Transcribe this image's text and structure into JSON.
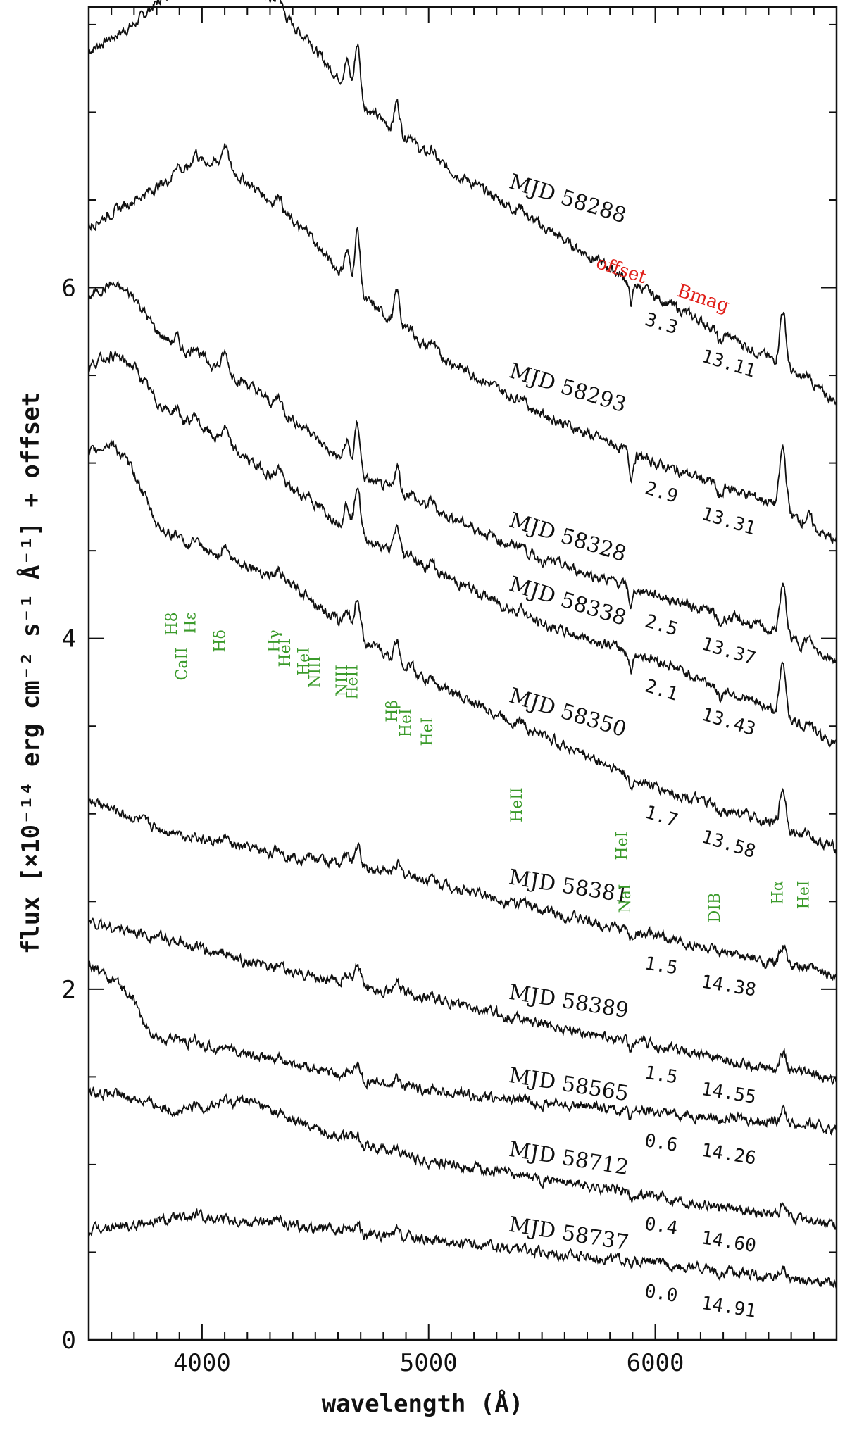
{
  "chart_data": {
    "type": "line",
    "xlabel": "wavelength (Å)",
    "ylabel": "flux [×10⁻¹⁴ erg cm⁻² s⁻¹ Å⁻¹] + offset",
    "xlim": [
      3500,
      6800
    ],
    "ylim": [
      0,
      7.6
    ],
    "x_ticks": [
      4000,
      5000,
      6000
    ],
    "y_ticks": [
      0,
      2,
      4,
      6
    ],
    "grid": false,
    "column_headers": {
      "offset": "offset",
      "bmag": "Bmag",
      "color": "#e0201a"
    },
    "line_color": "#3a9a2a",
    "series": [
      {
        "name": "MJD 58288",
        "offset": "3.3",
        "bmag": "13.11",
        "anchors": [
          [
            3500,
            7.35
          ],
          [
            3700,
            7.5
          ],
          [
            3900,
            7.75
          ],
          [
            4000,
            7.9
          ],
          [
            4100,
            7.95
          ],
          [
            4300,
            7.65
          ],
          [
            4500,
            7.35
          ],
          [
            4700,
            7.05
          ],
          [
            5000,
            6.75
          ],
          [
            5500,
            6.35
          ],
          [
            6000,
            5.95
          ],
          [
            6500,
            5.6
          ],
          [
            6800,
            5.35
          ]
        ]
      },
      {
        "name": "MJD 58293",
        "offset": "2.9",
        "bmag": "13.31",
        "anchors": [
          [
            3500,
            6.35
          ],
          [
            3700,
            6.5
          ],
          [
            3900,
            6.65
          ],
          [
            4000,
            6.72
          ],
          [
            4100,
            6.7
          ],
          [
            4300,
            6.5
          ],
          [
            4500,
            6.25
          ],
          [
            4700,
            5.95
          ],
          [
            5000,
            5.65
          ],
          [
            5500,
            5.28
          ],
          [
            6000,
            5.0
          ],
          [
            6500,
            4.78
          ],
          [
            6800,
            4.55
          ]
        ]
      },
      {
        "name": "MJD 58328",
        "offset": "2.5",
        "bmag": "13.37",
        "anchors": [
          [
            3500,
            5.95
          ],
          [
            3600,
            6.02
          ],
          [
            3700,
            5.95
          ],
          [
            3800,
            5.75
          ],
          [
            3900,
            5.65
          ],
          [
            4000,
            5.6
          ],
          [
            4200,
            5.45
          ],
          [
            4400,
            5.25
          ],
          [
            4700,
            4.92
          ],
          [
            5000,
            4.75
          ],
          [
            5500,
            4.45
          ],
          [
            6000,
            4.25
          ],
          [
            6500,
            4.05
          ],
          [
            6800,
            3.88
          ]
        ]
      },
      {
        "name": "MJD 58338",
        "offset": "2.1",
        "bmag": "13.43",
        "anchors": [
          [
            3500,
            5.55
          ],
          [
            3600,
            5.62
          ],
          [
            3700,
            5.55
          ],
          [
            3800,
            5.35
          ],
          [
            3900,
            5.25
          ],
          [
            4000,
            5.2
          ],
          [
            4200,
            5.02
          ],
          [
            4400,
            4.85
          ],
          [
            4700,
            4.58
          ],
          [
            5000,
            4.4
          ],
          [
            5500,
            4.08
          ],
          [
            6000,
            3.88
          ],
          [
            6500,
            3.6
          ],
          [
            6800,
            3.4
          ]
        ]
      },
      {
        "name": "MJD 58350",
        "offset": "1.7",
        "bmag": "13.58",
        "anchors": [
          [
            3500,
            5.05
          ],
          [
            3600,
            5.12
          ],
          [
            3700,
            4.95
          ],
          [
            3800,
            4.65
          ],
          [
            3900,
            4.55
          ],
          [
            4000,
            4.5
          ],
          [
            4200,
            4.42
          ],
          [
            4400,
            4.3
          ],
          [
            4700,
            4.0
          ],
          [
            5000,
            3.75
          ],
          [
            5500,
            3.45
          ],
          [
            6000,
            3.15
          ],
          [
            6500,
            2.95
          ],
          [
            6800,
            2.8
          ]
        ]
      },
      {
        "name": "MJD 58381",
        "offset": "1.5",
        "bmag": "14.38",
        "anchors": [
          [
            3500,
            3.08
          ],
          [
            3800,
            2.92
          ],
          [
            4000,
            2.85
          ],
          [
            4300,
            2.78
          ],
          [
            4700,
            2.7
          ],
          [
            5000,
            2.62
          ],
          [
            5500,
            2.45
          ],
          [
            6000,
            2.3
          ],
          [
            6500,
            2.15
          ],
          [
            6800,
            2.08
          ]
        ]
      },
      {
        "name": "MJD 58389",
        "offset": "1.5",
        "bmag": "14.55",
        "anchors": [
          [
            3500,
            2.38
          ],
          [
            3800,
            2.3
          ],
          [
            4000,
            2.22
          ],
          [
            4300,
            2.12
          ],
          [
            4700,
            2.02
          ],
          [
            5000,
            1.95
          ],
          [
            5500,
            1.8
          ],
          [
            6000,
            1.68
          ],
          [
            6500,
            1.55
          ],
          [
            6800,
            1.48
          ]
        ]
      },
      {
        "name": "MJD 58565",
        "offset": "0.6",
        "bmag": "14.26",
        "anchors": [
          [
            3500,
            2.15
          ],
          [
            3600,
            2.05
          ],
          [
            3700,
            1.95
          ],
          [
            3750,
            1.78
          ],
          [
            3800,
            1.72
          ],
          [
            3900,
            1.7
          ],
          [
            4000,
            1.68
          ],
          [
            4300,
            1.6
          ],
          [
            4700,
            1.48
          ],
          [
            5000,
            1.42
          ],
          [
            5500,
            1.35
          ],
          [
            6000,
            1.3
          ],
          [
            6500,
            1.25
          ],
          [
            6800,
            1.2
          ]
        ]
      },
      {
        "name": "MJD 58712",
        "offset": "0.4",
        "bmag": "14.60",
        "anchors": [
          [
            3500,
            1.42
          ],
          [
            3700,
            1.38
          ],
          [
            3900,
            1.3
          ],
          [
            4000,
            1.33
          ],
          [
            4200,
            1.37
          ],
          [
            4400,
            1.25
          ],
          [
            4700,
            1.12
          ],
          [
            5000,
            1.02
          ],
          [
            5500,
            0.92
          ],
          [
            6000,
            0.82
          ],
          [
            6500,
            0.72
          ],
          [
            6800,
            0.65
          ]
        ]
      },
      {
        "name": "MJD 58737",
        "offset": "0.0",
        "bmag": "14.91",
        "anchors": [
          [
            3500,
            0.62
          ],
          [
            3800,
            0.68
          ],
          [
            4000,
            0.7
          ],
          [
            4300,
            0.67
          ],
          [
            4700,
            0.6
          ],
          [
            5000,
            0.57
          ],
          [
            5500,
            0.5
          ],
          [
            6000,
            0.44
          ],
          [
            6500,
            0.36
          ],
          [
            6800,
            0.32
          ]
        ]
      }
    ],
    "line_ids": [
      {
        "label": "CaII",
        "x": 3934,
        "y": 3.95
      },
      {
        "label": "H8",
        "x": 3889,
        "y": 4.15
      },
      {
        "label": "Hε",
        "x": 3970,
        "y": 4.15
      },
      {
        "label": "Hδ",
        "x": 4101,
        "y": 4.05
      },
      {
        "label": "Hγ",
        "x": 4340,
        "y": 4.05
      },
      {
        "label": "HeI",
        "x": 4388,
        "y": 4.0
      },
      {
        "label": "HeI",
        "x": 4471,
        "y": 3.95
      },
      {
        "label": "NIII",
        "x": 4520,
        "y": 3.9
      },
      {
        "label": "NIII",
        "x": 4640,
        "y": 3.85
      },
      {
        "label": "HeII",
        "x": 4686,
        "y": 3.85
      },
      {
        "label": "Hβ",
        "x": 4861,
        "y": 3.65
      },
      {
        "label": "HeI",
        "x": 4922,
        "y": 3.6
      },
      {
        "label": "HeI",
        "x": 5016,
        "y": 3.55
      },
      {
        "label": "HeII",
        "x": 5411,
        "y": 3.15
      },
      {
        "label": "NaI",
        "x": 5890,
        "y": 2.6
      },
      {
        "label": "HeI",
        "x": 5876,
        "y": 2.9
      },
      {
        "label": "DIB",
        "x": 6284,
        "y": 2.55
      },
      {
        "label": "Hα",
        "x": 6563,
        "y": 2.62
      },
      {
        "label": "HeI",
        "x": 6678,
        "y": 2.62
      }
    ]
  }
}
